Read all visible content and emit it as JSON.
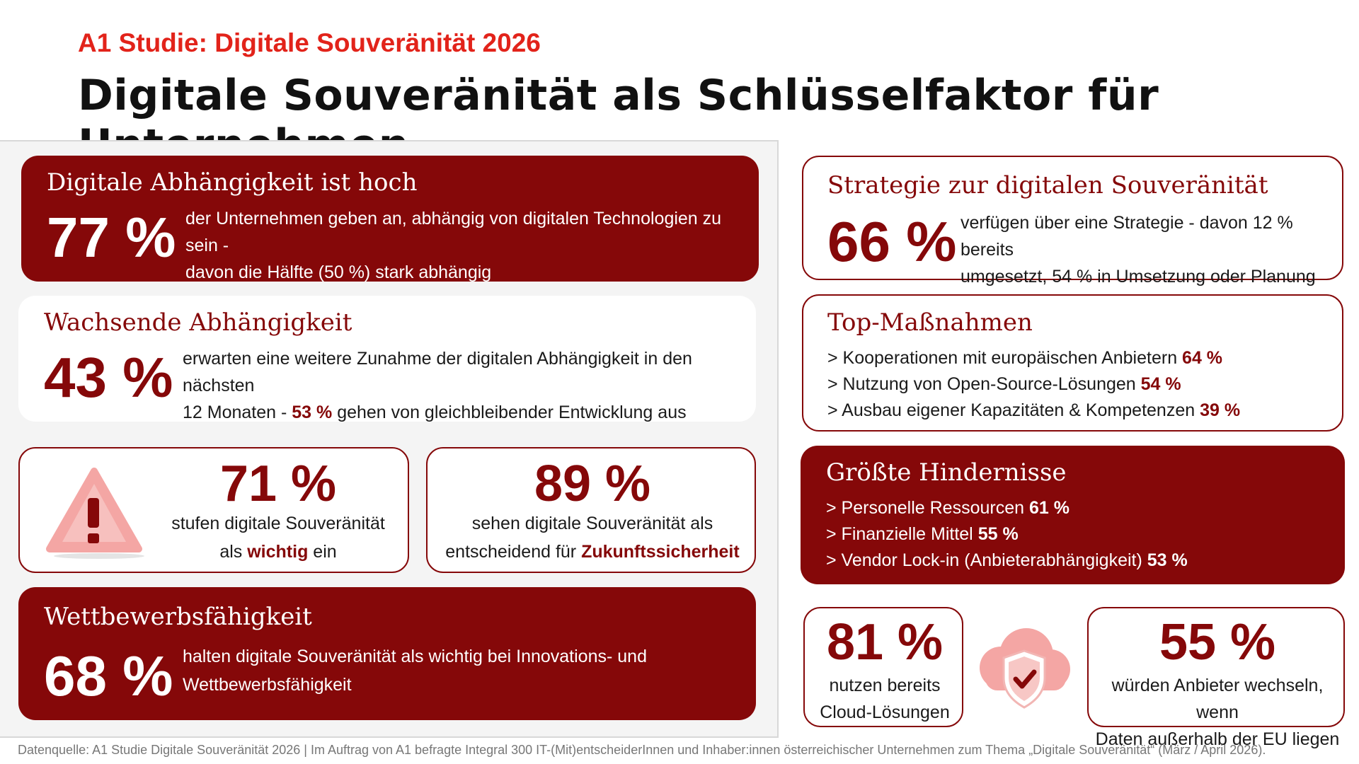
{
  "header": {
    "supertitle": "A1 Studie: Digitale Souveränität 2026",
    "title": "Digitale Souveränität als Schlüsselfaktor für Unternehmen"
  },
  "colors": {
    "accent": "#e2231a",
    "brand_dark": "#850809",
    "panel_bg": "#f4f4f4"
  },
  "cards": {
    "dependency": {
      "title": "Digitale Abhängigkeit ist hoch",
      "value": "77 %",
      "desc1": "der Unternehmen geben an, abhängig von digitalen Technologien zu sein -",
      "desc2": "davon die Hälfte (50 %) stark abhängig"
    },
    "growing": {
      "title": "Wachsende Abhängigkeit",
      "value": "43 %",
      "desc1": "erwarten eine weitere Zunahme der digitalen Abhängigkeit in den nächsten",
      "desc2a": "12 Monaten - ",
      "desc2b": "53 %",
      "desc2c": " gehen von gleichbleibender Entwicklung aus"
    },
    "important": {
      "value": "71 %",
      "desc1": "stufen digitale Souveränität",
      "desc2a": "als ",
      "desc2b": "wichtig",
      "desc2c": " ein",
      "icon": "warning-triangle-icon"
    },
    "future": {
      "value": "89 %",
      "desc1": "sehen digitale Souveränität als",
      "desc2a": "entscheidend für ",
      "desc2b": "Zukunftssicherheit"
    },
    "competition": {
      "title": "Wettbewerbsfähigkeit",
      "value": "68 %",
      "desc1": "halten digitale Souveränität als wichtig bei Innovations- und",
      "desc2": "Wettbewerbsfähigkeit"
    },
    "strategy": {
      "title": "Strategie zur digitalen Souveränität",
      "value": "66 %",
      "desc1": "verfügen über eine Strategie - davon 12 % bereits",
      "desc2": "umgesetzt, 54 % in Umsetzung oder Planung"
    },
    "measures": {
      "title": "Top-Maßnahmen",
      "items": [
        {
          "text": "> Kooperationen mit europäischen Anbietern ",
          "value": "64 %"
        },
        {
          "text": "> Nutzung von Open-Source-Lösungen ",
          "value": "54 %"
        },
        {
          "text": "> Ausbau eigener Kapazitäten & Kompetenzen ",
          "value": "39 %"
        }
      ]
    },
    "obstacles": {
      "title": "Größte Hindernisse",
      "items": [
        {
          "text": "> Personelle Ressourcen ",
          "value": "61 %"
        },
        {
          "text": "> Finanzielle Mittel ",
          "value": "55 %"
        },
        {
          "text": "> Vendor Lock-in (Anbieterabhängigkeit) ",
          "value": "53 %"
        }
      ]
    },
    "cloud": {
      "value": "81 %",
      "desc1": "nutzen bereits",
      "desc2": "Cloud-Lösungen",
      "icon": "cloud-shield-check-icon"
    },
    "switch": {
      "value": "55 %",
      "desc1": "würden Anbieter wechseln, wenn",
      "desc2": "Daten außerhalb der EU liegen"
    }
  },
  "footer": {
    "source": "Datenquelle: A1 Studie Digitale Souveränität 2026 | Im Auftrag von A1 befragte Integral 300 IT-(Mit)entscheiderInnen und Inhaber:innen österreichischer Unternehmen zum Thema „Digitale Souveränität“ (März / April 2026)."
  }
}
